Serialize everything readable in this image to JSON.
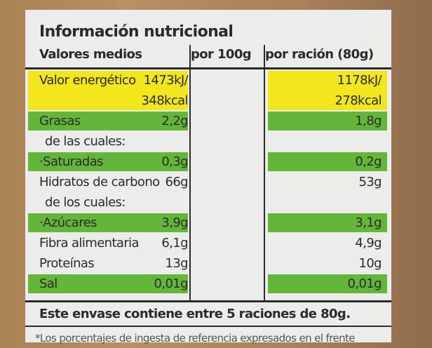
{
  "header": {
    "title": "Información nutricional"
  },
  "table": {
    "columns": [
      "Valores medios",
      "por 100g",
      "por ración (80g)"
    ],
    "rows": [
      {
        "cells": [
          "Valor energético",
          [
            "1473kJ/",
            "348kcal"
          ],
          [
            "1178kJ/",
            "278kcal"
          ]
        ],
        "color": "#f3e61c"
      },
      {
        "cells": [
          "Grasas",
          "2,2g",
          "1,8g"
        ],
        "color": "#63b63a"
      },
      {
        "cells": [
          "de las cuales:"
        ]
      },
      {
        "cells": [
          "·Saturadas",
          "0,3g",
          "0,2g"
        ],
        "color": "#63b63a"
      },
      {
        "cells": [
          "Hidratos de carbono",
          "66g",
          "53g"
        ]
      },
      {
        "cells": [
          "de los cuales:"
        ]
      },
      {
        "cells": [
          "·Azúcares",
          "3,9g",
          "3,1g"
        ],
        "color": "#63b63a"
      },
      {
        "cells": [
          "Fibra alimentaria",
          "6,1g",
          "4,9g"
        ]
      },
      {
        "cells": [
          "Proteínas",
          "13g",
          "10g"
        ]
      },
      {
        "cells": [
          "Sal",
          "0,01g",
          "0,01g"
        ],
        "color": "#63b63a"
      }
    ]
  },
  "footer": "Este envase contiene entre 5 raciones de 80g.",
  "note": "*Los porcentajes de ingesta de referencia expresados en el frente"
}
